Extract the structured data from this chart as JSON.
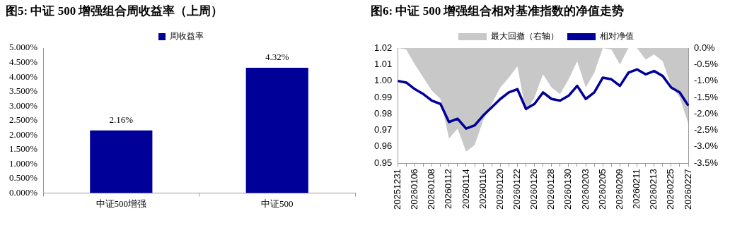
{
  "chart_data": [
    {
      "type": "bar",
      "title": "图5:  中证 500 增强组合周收益率（上周）",
      "categories": [
        "中证500增强",
        "中证500"
      ],
      "series": [
        {
          "name": "周收益率",
          "color": "#000099",
          "values": [
            2.16,
            4.32
          ],
          "value_labels": [
            "2.16%",
            "4.32%"
          ]
        }
      ],
      "ylim": [
        0,
        5
      ],
      "yticks": [
        {
          "value": 0,
          "label": "0.000%"
        },
        {
          "value": 0.5,
          "label": "0.500%"
        },
        {
          "value": 1,
          "label": "1.000%"
        },
        {
          "value": 1.5,
          "label": "1.500%"
        },
        {
          "value": 2,
          "label": "2.000%"
        },
        {
          "value": 2.5,
          "label": "2.500%"
        },
        {
          "value": 3,
          "label": "3.000%"
        },
        {
          "value": 3.5,
          "label": "3.500%"
        },
        {
          "value": 4,
          "label": "4.000%"
        },
        {
          "value": 4.5,
          "label": "4.500%"
        },
        {
          "value": 5,
          "label": "5.000%"
        }
      ],
      "legend": "top",
      "grid": false
    },
    {
      "type": "line",
      "title": "图6:  中证 500 增强组合相对基准指数的净值走势",
      "categories": [
        "20251231",
        null,
        "20260106",
        null,
        "20260108",
        null,
        "20260112",
        null,
        "20260114",
        null,
        "20260116",
        null,
        "20260120",
        null,
        "20260122",
        null,
        "20260126",
        null,
        "20260128",
        null,
        "20260130",
        null,
        "20260203",
        null,
        "20260205",
        null,
        "20260209",
        null,
        "20260211",
        null,
        "20260213",
        null,
        "20260225",
        null,
        "20260227"
      ],
      "series": [
        {
          "name": "最大回撤（右轴）",
          "type": "area",
          "axis": "y2",
          "color": "#c8c8c8",
          "values": [
            0,
            -0.05,
            -0.5,
            -0.9,
            -1.3,
            -1.55,
            -2.75,
            -2.45,
            -3.15,
            -2.95,
            -2.2,
            -1.7,
            -1.2,
            -0.9,
            -0.55,
            -1.95,
            -1.5,
            -0.8,
            -1.2,
            -1.4,
            -0.95,
            -0.4,
            -1.2,
            -0.75,
            0,
            -0.05,
            -0.5,
            0,
            0,
            -0.35,
            -0.2,
            -0.4,
            -1.15,
            -1.5,
            -2.3
          ]
        },
        {
          "name": "相对净值",
          "type": "line",
          "color": "#000099",
          "values": [
            1.0,
            0.999,
            0.995,
            0.992,
            0.988,
            0.986,
            0.975,
            0.977,
            0.971,
            0.973,
            0.979,
            0.984,
            0.989,
            0.993,
            0.995,
            0.983,
            0.986,
            0.993,
            0.989,
            0.988,
            0.991,
            0.997,
            0.989,
            0.993,
            1.002,
            1.001,
            0.997,
            1.005,
            1.007,
            1.004,
            1.006,
            1.003,
            0.996,
            0.993,
            0.985
          ]
        }
      ],
      "ylim": [
        0.95,
        1.02
      ],
      "yticks": [
        0.95,
        0.96,
        0.97,
        0.98,
        0.99,
        {
          "value": 1,
          "label": "1.00"
        },
        1.01,
        1.02
      ],
      "y2lim": [
        -3.5,
        0
      ],
      "y2ticks": [
        {
          "value": -3.5,
          "label": "-3.5%"
        },
        {
          "value": -3,
          "label": "-3.0%"
        },
        {
          "value": -2.5,
          "label": "-2.5%"
        },
        {
          "value": -2,
          "label": "-2.0%"
        },
        {
          "value": -1.5,
          "label": "-1.5%"
        },
        {
          "value": -1,
          "label": "-1.0%"
        },
        {
          "value": -0.5,
          "label": "-0.5%"
        },
        {
          "value": 0,
          "label": "0.0%"
        }
      ],
      "legend": "top",
      "grid": false
    }
  ]
}
